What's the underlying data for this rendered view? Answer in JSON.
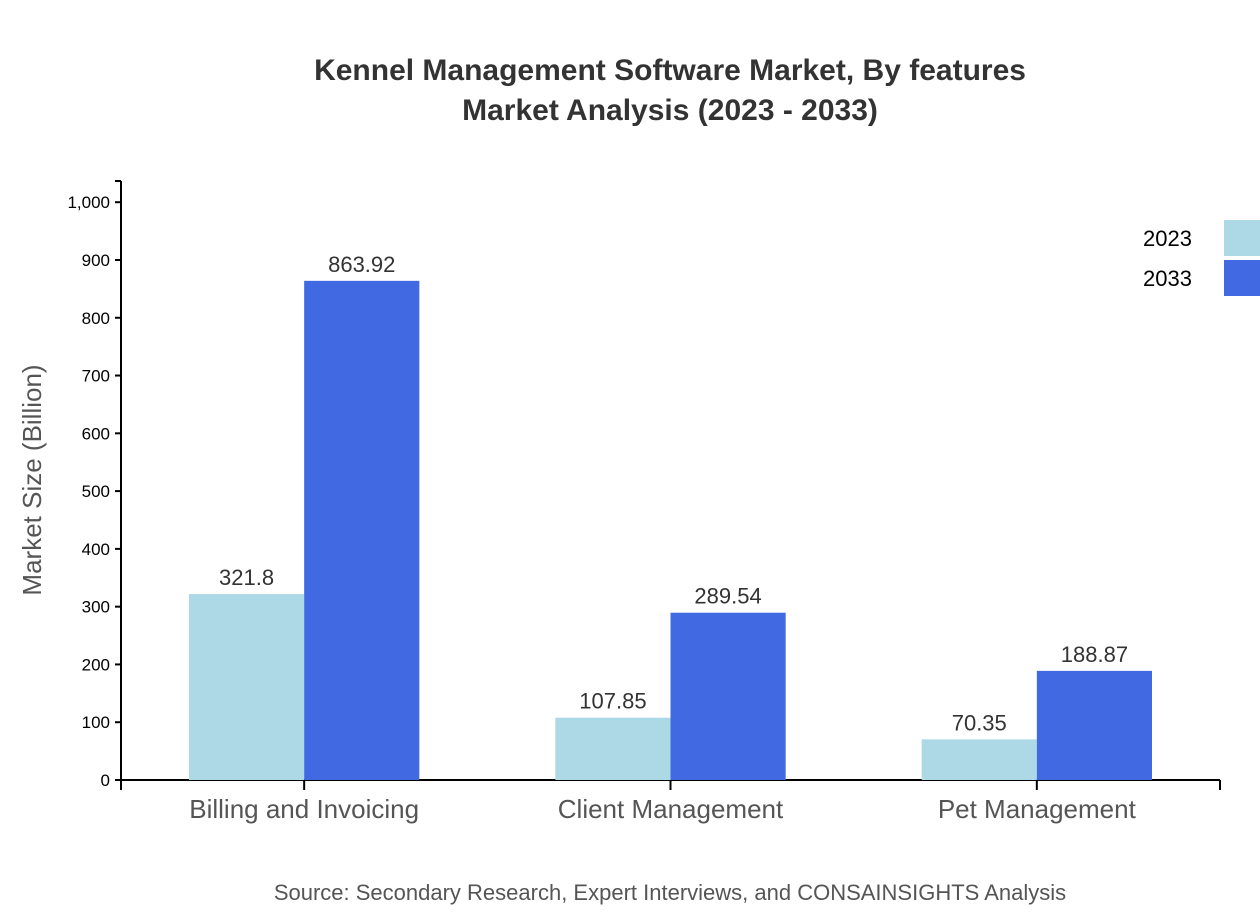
{
  "chart_data": {
    "type": "bar",
    "title": "Kennel Management Software Market, By features",
    "subtitle": "Market Analysis (2023 - 2033)",
    "xlabel": "",
    "ylabel": "Market Size (Billion)",
    "categories": [
      "Billing and Invoicing",
      "Client Management",
      "Pet Management"
    ],
    "series": [
      {
        "name": "2023",
        "values": [
          321.8,
          107.85,
          70.35
        ],
        "labels": [
          "321.8",
          "107.85",
          "70.35"
        ],
        "color": "#add8e6"
      },
      {
        "name": "2033",
        "values": [
          863.92,
          289.54,
          188.87
        ],
        "labels": [
          "863.92",
          "289.54",
          "188.87"
        ],
        "color": "#4169e1"
      }
    ],
    "ylim": [
      0,
      1036.7
    ],
    "yticks": [
      0,
      100,
      200,
      300,
      400,
      500,
      600,
      700,
      800,
      900,
      1000
    ],
    "ytick_labels": [
      "0",
      "100",
      "200",
      "300",
      "400",
      "500",
      "600",
      "700",
      "800",
      "900",
      "1,000"
    ],
    "grid": false,
    "legend": "top-right",
    "source": "Source: Secondary Research, Expert Interviews, and CONSAINSIGHTS Analysis"
  }
}
